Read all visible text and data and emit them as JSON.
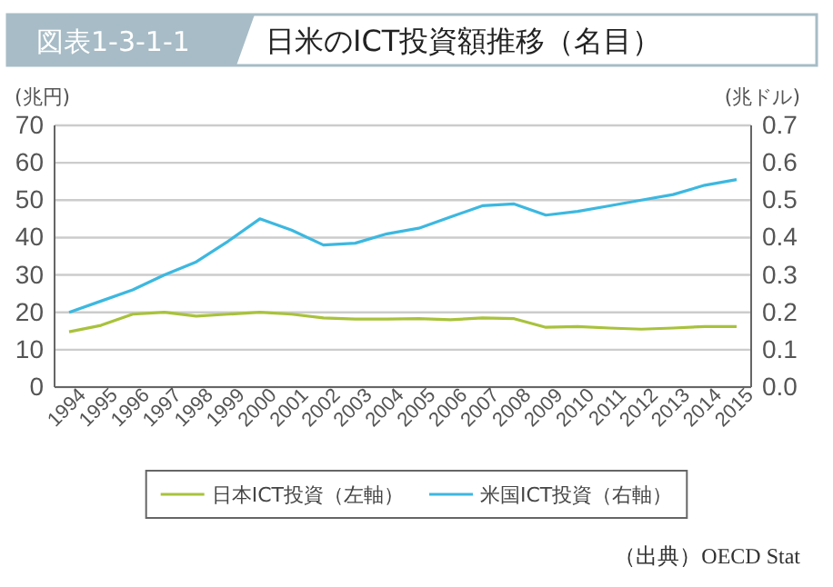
{
  "chart_data": {
    "type": "line",
    "title": "日米のICT投資額推移（名目）",
    "ylabel": "(兆円)",
    "y2label": "(兆ドル)",
    "annotations": [
      "図表1-3-1-1",
      "（出典）OECD Stat"
    ],
    "categories": [
      "1994",
      "1995",
      "1996",
      "1997",
      "1998",
      "1999",
      "2000",
      "2001",
      "2002",
      "2003",
      "2004",
      "2005",
      "2006",
      "2007",
      "2008",
      "2009",
      "2010",
      "2011",
      "2012",
      "2013",
      "2014",
      "2015"
    ],
    "series": [
      {
        "name": "日本ICT投資（左軸）",
        "color": "#a8c23c",
        "values": [
          14.8,
          16.5,
          19.5,
          20,
          19,
          19.5,
          20,
          19.5,
          18.5,
          18.2,
          18.2,
          18.3,
          18,
          18.5,
          18.3,
          16,
          16.2,
          15.8,
          15.5,
          15.8,
          16.2,
          16.2
        ]
      },
      {
        "name": "米国ICT投資（右軸）",
        "color": "#3cb8e0",
        "axis": "y2",
        "values": [
          0.2,
          0.23,
          0.26,
          0.3,
          0.335,
          0.39,
          0.45,
          0.42,
          0.38,
          0.385,
          0.41,
          0.425,
          0.455,
          0.485,
          0.49,
          0.46,
          0.47,
          0.485,
          0.5,
          0.515,
          0.54,
          0.555
        ]
      }
    ],
    "ylim": [
      0,
      70
    ],
    "yticks": [
      0,
      10,
      20,
      30,
      40,
      50,
      60,
      70
    ],
    "y2lim": [
      0,
      0.7
    ],
    "y2ticks": [
      {
        "value": 0,
        "label": "0.0"
      },
      0.1,
      0.2,
      0.3,
      0.4,
      0.5,
      0.6,
      0.7
    ],
    "grid": "y",
    "legend": "bottom",
    "marker": "none",
    "line_style": "solid"
  }
}
